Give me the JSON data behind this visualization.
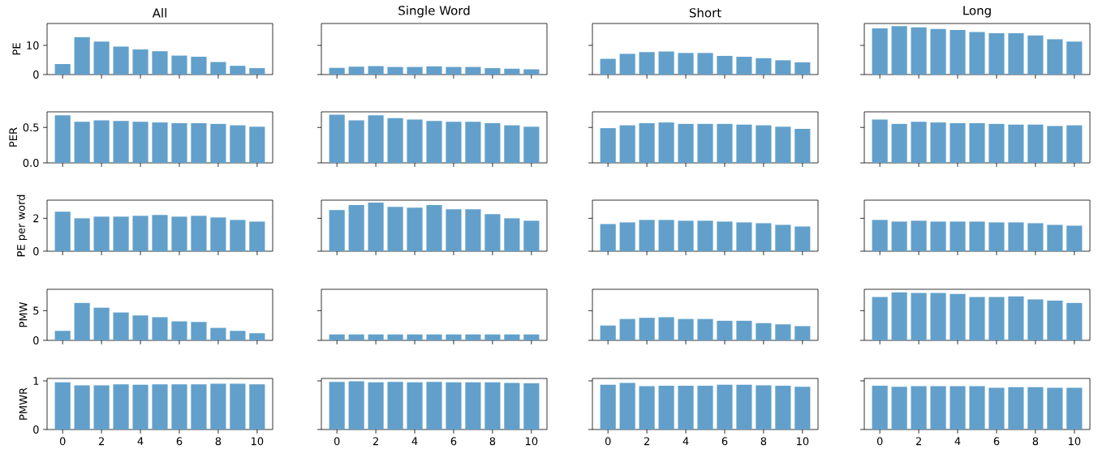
{
  "chart_data": [
    {
      "type": "bar",
      "title": "All",
      "ylabel": "PE",
      "x": [
        0,
        1,
        2,
        3,
        4,
        5,
        6,
        7,
        8,
        9,
        10
      ],
      "values": [
        3.6,
        12.8,
        11.3,
        9.6,
        8.6,
        8.0,
        6.5,
        6.1,
        4.3,
        3.0,
        2.2
      ],
      "color": "#62a0cb",
      "xlim": [
        -0.8,
        10.8
      ],
      "xticks": [
        0,
        2,
        4,
        6,
        8,
        10
      ],
      "ylim": [
        0,
        17.5
      ],
      "yticks": [
        0,
        10
      ],
      "tick_labels": "y"
    },
    {
      "type": "bar",
      "title": "Single Word",
      "x": [
        0,
        1,
        2,
        3,
        4,
        5,
        6,
        7,
        8,
        9,
        10
      ],
      "values": [
        2.3,
        2.7,
        2.9,
        2.6,
        2.6,
        2.8,
        2.6,
        2.6,
        2.2,
        2.0,
        1.8
      ],
      "color": "#62a0cb",
      "xlim": [
        -0.8,
        10.8
      ],
      "xticks": [
        0,
        2,
        4,
        6,
        8,
        10
      ],
      "ylim": [
        0,
        17.5
      ],
      "yticks": [
        0,
        10
      ],
      "tick_labels": false
    },
    {
      "type": "bar",
      "title": "Short",
      "x": [
        0,
        1,
        2,
        3,
        4,
        5,
        6,
        7,
        8,
        9,
        10
      ],
      "values": [
        5.4,
        7.1,
        7.7,
        7.9,
        7.4,
        7.4,
        6.4,
        6.1,
        5.6,
        4.9,
        4.2
      ],
      "color": "#62a0cb",
      "xlim": [
        -0.8,
        10.8
      ],
      "xticks": [
        0,
        2,
        4,
        6,
        8,
        10
      ],
      "ylim": [
        0,
        17.5
      ],
      "yticks": [
        0,
        10
      ],
      "tick_labels": false
    },
    {
      "type": "bar",
      "title": "Long",
      "x": [
        0,
        1,
        2,
        3,
        4,
        5,
        6,
        7,
        8,
        9,
        10
      ],
      "values": [
        15.8,
        16.6,
        16.2,
        15.6,
        15.3,
        14.6,
        14.2,
        14.2,
        13.4,
        12.1,
        11.3
      ],
      "color": "#62a0cb",
      "xlim": [
        -0.8,
        10.8
      ],
      "xticks": [
        0,
        2,
        4,
        6,
        8,
        10
      ],
      "ylim": [
        0,
        17.5
      ],
      "yticks": [
        0,
        10
      ],
      "tick_labels": false
    },
    {
      "type": "bar",
      "ylabel": "PER",
      "x": [
        0,
        1,
        2,
        3,
        4,
        5,
        6,
        7,
        8,
        9,
        10
      ],
      "values": [
        0.67,
        0.58,
        0.6,
        0.59,
        0.58,
        0.57,
        0.56,
        0.56,
        0.55,
        0.53,
        0.51
      ],
      "color": "#62a0cb",
      "xlim": [
        -0.8,
        10.8
      ],
      "xticks": [
        0,
        2,
        4,
        6,
        8,
        10
      ],
      "ylim": [
        0,
        0.72
      ],
      "yticks": [
        {
          "value": 0,
          "label": "0.0"
        },
        0.5
      ],
      "tick_labels": "y"
    },
    {
      "type": "bar",
      "x": [
        0,
        1,
        2,
        3,
        4,
        5,
        6,
        7,
        8,
        9,
        10
      ],
      "values": [
        0.68,
        0.6,
        0.67,
        0.63,
        0.61,
        0.59,
        0.58,
        0.58,
        0.56,
        0.53,
        0.51
      ],
      "color": "#62a0cb",
      "xlim": [
        -0.8,
        10.8
      ],
      "xticks": [
        0,
        2,
        4,
        6,
        8,
        10
      ],
      "ylim": [
        0,
        0.72
      ],
      "yticks": [
        0,
        0.5
      ],
      "tick_labels": false
    },
    {
      "type": "bar",
      "x": [
        0,
        1,
        2,
        3,
        4,
        5,
        6,
        7,
        8,
        9,
        10
      ],
      "values": [
        0.49,
        0.53,
        0.56,
        0.57,
        0.55,
        0.55,
        0.55,
        0.54,
        0.53,
        0.51,
        0.48
      ],
      "color": "#62a0cb",
      "xlim": [
        -0.8,
        10.8
      ],
      "xticks": [
        0,
        2,
        4,
        6,
        8,
        10
      ],
      "ylim": [
        0,
        0.72
      ],
      "yticks": [
        0,
        0.5
      ],
      "tick_labels": false
    },
    {
      "type": "bar",
      "x": [
        0,
        1,
        2,
        3,
        4,
        5,
        6,
        7,
        8,
        9,
        10
      ],
      "values": [
        0.61,
        0.55,
        0.58,
        0.57,
        0.56,
        0.56,
        0.55,
        0.54,
        0.54,
        0.52,
        0.53
      ],
      "color": "#62a0cb",
      "xlim": [
        -0.8,
        10.8
      ],
      "xticks": [
        0,
        2,
        4,
        6,
        8,
        10
      ],
      "ylim": [
        0,
        0.72
      ],
      "yticks": [
        0,
        0.5
      ],
      "tick_labels": false
    },
    {
      "type": "bar",
      "ylabel": "PE per word",
      "x": [
        0,
        1,
        2,
        3,
        4,
        5,
        6,
        7,
        8,
        9,
        10
      ],
      "values": [
        2.4,
        2.0,
        2.1,
        2.1,
        2.15,
        2.2,
        2.1,
        2.15,
        2.05,
        1.9,
        1.8
      ],
      "color": "#62a0cb",
      "xlim": [
        -0.8,
        10.8
      ],
      "xticks": [
        0,
        2,
        4,
        6,
        8,
        10
      ],
      "ylim": [
        0,
        3.1
      ],
      "yticks": [
        0,
        2
      ],
      "tick_labels": "y"
    },
    {
      "type": "bar",
      "x": [
        0,
        1,
        2,
        3,
        4,
        5,
        6,
        7,
        8,
        9,
        10
      ],
      "values": [
        2.5,
        2.8,
        2.95,
        2.7,
        2.65,
        2.8,
        2.55,
        2.55,
        2.25,
        2.0,
        1.85
      ],
      "color": "#62a0cb",
      "xlim": [
        -0.8,
        10.8
      ],
      "xticks": [
        0,
        2,
        4,
        6,
        8,
        10
      ],
      "ylim": [
        0,
        3.1
      ],
      "yticks": [
        0,
        2
      ],
      "tick_labels": false
    },
    {
      "type": "bar",
      "x": [
        0,
        1,
        2,
        3,
        4,
        5,
        6,
        7,
        8,
        9,
        10
      ],
      "values": [
        1.65,
        1.75,
        1.9,
        1.9,
        1.85,
        1.85,
        1.8,
        1.75,
        1.7,
        1.6,
        1.5
      ],
      "color": "#62a0cb",
      "xlim": [
        -0.8,
        10.8
      ],
      "xticks": [
        0,
        2,
        4,
        6,
        8,
        10
      ],
      "ylim": [
        0,
        3.1
      ],
      "yticks": [
        0,
        2
      ],
      "tick_labels": false
    },
    {
      "type": "bar",
      "x": [
        0,
        1,
        2,
        3,
        4,
        5,
        6,
        7,
        8,
        9,
        10
      ],
      "values": [
        1.9,
        1.8,
        1.85,
        1.8,
        1.8,
        1.8,
        1.75,
        1.75,
        1.7,
        1.6,
        1.55
      ],
      "color": "#62a0cb",
      "xlim": [
        -0.8,
        10.8
      ],
      "xticks": [
        0,
        2,
        4,
        6,
        8,
        10
      ],
      "ylim": [
        0,
        3.1
      ],
      "yticks": [
        0,
        2
      ],
      "tick_labels": false
    },
    {
      "type": "bar",
      "ylabel": "PMW",
      "x": [
        0,
        1,
        2,
        3,
        4,
        5,
        6,
        7,
        8,
        9,
        10
      ],
      "values": [
        1.6,
        6.3,
        5.5,
        4.7,
        4.2,
        3.9,
        3.2,
        3.1,
        2.1,
        1.6,
        1.2
      ],
      "color": "#62a0cb",
      "xlim": [
        -0.8,
        10.8
      ],
      "xticks": [
        0,
        2,
        4,
        6,
        8,
        10
      ],
      "ylim": [
        0,
        8.6
      ],
      "yticks": [
        0,
        5
      ],
      "tick_labels": "y"
    },
    {
      "type": "bar",
      "x": [
        0,
        1,
        2,
        3,
        4,
        5,
        6,
        7,
        8,
        9,
        10
      ],
      "values": [
        1.0,
        1.0,
        1.0,
        1.0,
        1.0,
        1.0,
        1.0,
        1.0,
        1.0,
        1.0,
        1.0
      ],
      "color": "#62a0cb",
      "xlim": [
        -0.8,
        10.8
      ],
      "xticks": [
        0,
        2,
        4,
        6,
        8,
        10
      ],
      "ylim": [
        0,
        8.6
      ],
      "yticks": [
        0,
        5
      ],
      "tick_labels": false
    },
    {
      "type": "bar",
      "x": [
        0,
        1,
        2,
        3,
        4,
        5,
        6,
        7,
        8,
        9,
        10
      ],
      "values": [
        2.5,
        3.6,
        3.8,
        3.9,
        3.6,
        3.6,
        3.3,
        3.3,
        2.9,
        2.7,
        2.4
      ],
      "color": "#62a0cb",
      "xlim": [
        -0.8,
        10.8
      ],
      "xticks": [
        0,
        2,
        4,
        6,
        8,
        10
      ],
      "ylim": [
        0,
        8.6
      ],
      "yticks": [
        0,
        5
      ],
      "tick_labels": false
    },
    {
      "type": "bar",
      "x": [
        0,
        1,
        2,
        3,
        4,
        5,
        6,
        7,
        8,
        9,
        10
      ],
      "values": [
        7.3,
        8.1,
        8.0,
        8.0,
        7.8,
        7.3,
        7.3,
        7.4,
        6.9,
        6.7,
        6.3
      ],
      "color": "#62a0cb",
      "xlim": [
        -0.8,
        10.8
      ],
      "xticks": [
        0,
        2,
        4,
        6,
        8,
        10
      ],
      "ylim": [
        0,
        8.6
      ],
      "yticks": [
        0,
        5
      ],
      "tick_labels": false
    },
    {
      "type": "bar",
      "ylabel": "PMWR",
      "x": [
        0,
        1,
        2,
        3,
        4,
        5,
        6,
        7,
        8,
        9,
        10
      ],
      "values": [
        0.97,
        0.91,
        0.91,
        0.93,
        0.92,
        0.93,
        0.93,
        0.93,
        0.94,
        0.94,
        0.93
      ],
      "color": "#62a0cb",
      "xlim": [
        -0.8,
        10.8
      ],
      "xticks": [
        0,
        2,
        4,
        6,
        8,
        10
      ],
      "ylim": [
        0,
        1.05
      ],
      "yticks": [
        0,
        1
      ]
    },
    {
      "type": "bar",
      "x": [
        0,
        1,
        2,
        3,
        4,
        5,
        6,
        7,
        8,
        9,
        10
      ],
      "values": [
        0.98,
        0.99,
        0.97,
        0.98,
        0.97,
        0.98,
        0.97,
        0.97,
        0.97,
        0.96,
        0.95
      ],
      "color": "#62a0cb",
      "xlim": [
        -0.8,
        10.8
      ],
      "xticks": [
        0,
        2,
        4,
        6,
        8,
        10
      ],
      "ylim": [
        0,
        1.05
      ],
      "yticks": [
        0,
        1
      ],
      "tick_labels": "x"
    },
    {
      "type": "bar",
      "x": [
        0,
        1,
        2,
        3,
        4,
        5,
        6,
        7,
        8,
        9,
        10
      ],
      "values": [
        0.92,
        0.96,
        0.89,
        0.9,
        0.9,
        0.9,
        0.92,
        0.92,
        0.91,
        0.9,
        0.88
      ],
      "color": "#62a0cb",
      "xlim": [
        -0.8,
        10.8
      ],
      "xticks": [
        0,
        2,
        4,
        6,
        8,
        10
      ],
      "ylim": [
        0,
        1.05
      ],
      "yticks": [
        0,
        1
      ],
      "tick_labels": "x"
    },
    {
      "type": "bar",
      "x": [
        0,
        1,
        2,
        3,
        4,
        5,
        6,
        7,
        8,
        9,
        10
      ],
      "values": [
        0.9,
        0.88,
        0.89,
        0.89,
        0.89,
        0.89,
        0.86,
        0.87,
        0.87,
        0.86,
        0.86
      ],
      "color": "#62a0cb",
      "xlim": [
        -0.8,
        10.8
      ],
      "xticks": [
        0,
        2,
        4,
        6,
        8,
        10
      ],
      "ylim": [
        0,
        1.05
      ],
      "yticks": [
        0,
        1
      ],
      "tick_labels": "x"
    }
  ]
}
